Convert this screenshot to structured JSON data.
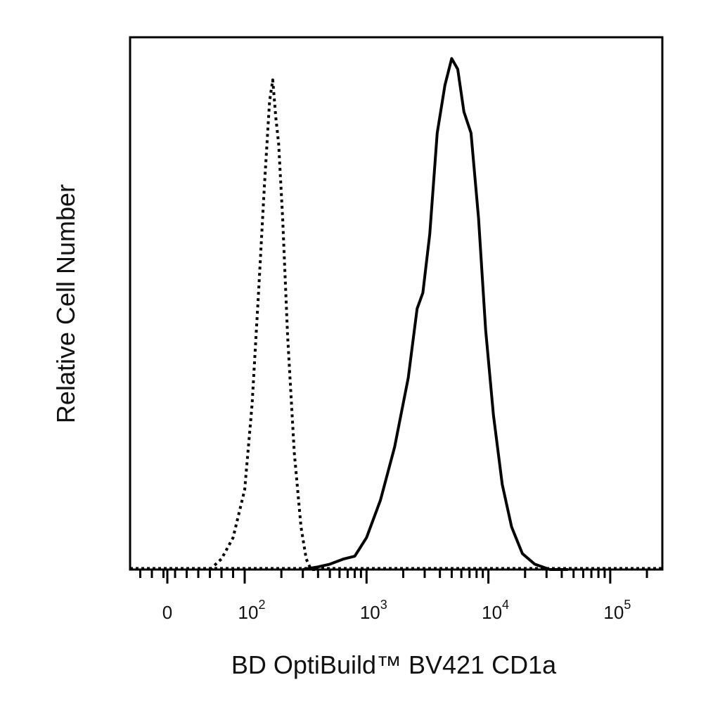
{
  "chart_data": {
    "type": "line",
    "title": "",
    "xlabel": "BD OptiBuild™  BV421 CD1a",
    "ylabel": "Relative Cell Number",
    "x_scale": "biexponential (log above ~10^2, linear near 0)",
    "xlim": [
      -300,
      200000
    ],
    "ylim": [
      0,
      1.0
    ],
    "grid": false,
    "legend": "none",
    "x_ticks": [
      {
        "value": 0,
        "base": "0",
        "exp": ""
      },
      {
        "value": 100,
        "base": "10",
        "exp": "2"
      },
      {
        "value": 1000,
        "base": "10",
        "exp": "3"
      },
      {
        "value": 10000,
        "base": "10",
        "exp": "4"
      },
      {
        "value": 100000,
        "base": "10",
        "exp": "5"
      }
    ],
    "series": [
      {
        "style": "dotted",
        "color": "#000000",
        "x": [
          55,
          70,
          85,
          100,
          115,
          130,
          145,
          160,
          170,
          180,
          190,
          205,
          225,
          255,
          290,
          320,
          350,
          400
        ],
        "y": [
          0.0,
          0.02,
          0.06,
          0.15,
          0.31,
          0.52,
          0.72,
          0.88,
          0.92,
          0.85,
          0.8,
          0.66,
          0.44,
          0.22,
          0.08,
          0.02,
          0.0,
          0.0
        ]
      },
      {
        "style": "solid",
        "color": "#000000",
        "x": [
          300,
          400,
          500,
          650,
          800,
          1000,
          1300,
          1700,
          2200,
          2600,
          2900,
          3300,
          3800,
          4400,
          5000,
          5600,
          6300,
          7200,
          8300,
          9500,
          11000,
          13000,
          15500,
          19000,
          24000,
          32000,
          45000
        ],
        "y": [
          0.0,
          0.005,
          0.01,
          0.02,
          0.025,
          0.06,
          0.13,
          0.23,
          0.36,
          0.49,
          0.52,
          0.63,
          0.82,
          0.91,
          0.96,
          0.94,
          0.86,
          0.82,
          0.66,
          0.45,
          0.29,
          0.16,
          0.08,
          0.03,
          0.01,
          0.0,
          0.0
        ]
      }
    ]
  }
}
